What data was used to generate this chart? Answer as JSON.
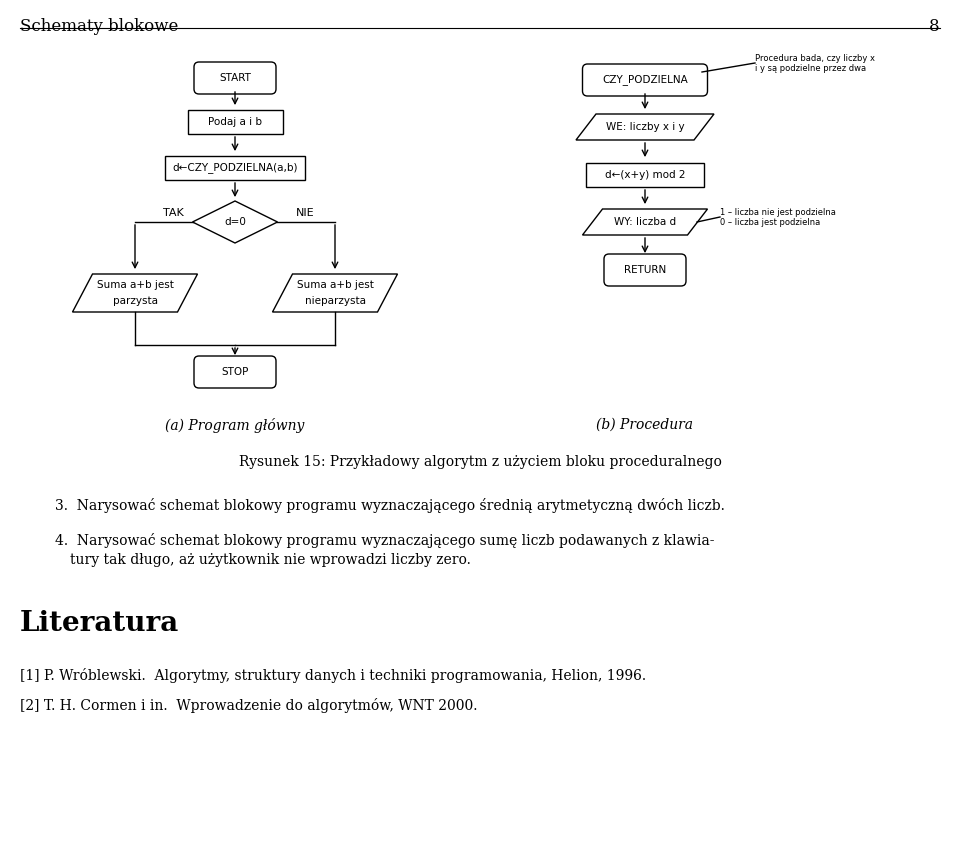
{
  "title": "Schematy blokowe",
  "page_number": "8",
  "caption": "Rysunek 15: Przykładowy algorytm z użyciem bloku proceduralnego",
  "sub_caption_a": "(a) Program główny",
  "sub_caption_b": "(b) Procedura",
  "item3": "3.  Narysować schemat blokowy programu wyznaczającego średnią arytmetyczną dwóch liczb.",
  "item4_line1": "4.  Narysować schemat blokowy programu wyznaczającego sumę liczb podawanych z klawia-",
  "item4_line2": "tury tak długo, aż użytkownik nie wprowadzi liczby zero.",
  "literatura_title": "Literatura",
  "ref1": "[1] P. Wróblewski.  Algorytmy, struktury danych i techniki programowania, Helion, 1996.",
  "ref2": "[2] T. H. Cormen i in.  Wprowadzenie do algorytmów, WNT 2000.",
  "bg_color": "#ffffff"
}
